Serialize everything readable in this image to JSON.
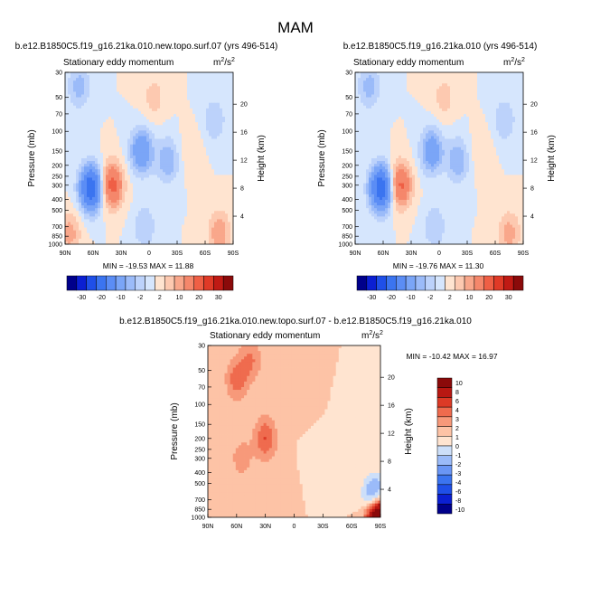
{
  "page_title": "MAM",
  "colors": {
    "full_scale": [
      "#00008b",
      "#0b1fd2",
      "#1f4fe8",
      "#3b74f0",
      "#5b8df5",
      "#7aa5f7",
      "#9bbbf9",
      "#bcd2fb",
      "#d6e6fd",
      "#ffe4d0",
      "#fdc9b0",
      "#f9a78b",
      "#f5876b",
      "#ef5f45",
      "#e03a27",
      "#c01a14",
      "#8b0a0a"
    ],
    "diff_scale": [
      "#00008b",
      "#0b1fd2",
      "#1f4fe8",
      "#3b74f0",
      "#6a96f5",
      "#9bbbf9",
      "#cddff9",
      "#ffe4d0",
      "#fdc3a6",
      "#f7997a",
      "#ef6b4e",
      "#dc3a26",
      "#b81812",
      "#8b0a0a"
    ]
  },
  "chart_data": [
    {
      "type": "heatmap",
      "title": "b.e12.B1850C5.f19_g16.21ka.010.new.topo.surf.07 (yrs 496-514)",
      "subtitle": "Stationary eddy momentum",
      "units_base": "m",
      "units_exp_top": "2",
      "units_exp_bottom": "2",
      "ylabel": "Pressure (mb)",
      "y2label": "Height (km)",
      "x_ticks": [
        "90N",
        "60N",
        "30N",
        "0",
        "30S",
        "60S",
        "90S"
      ],
      "y_ticks": [
        "30",
        "50",
        "70",
        "100",
        "150",
        "200",
        "250",
        "300",
        "400",
        "500",
        "700",
        "850",
        "1000"
      ],
      "y2_ticks": [
        "20",
        "16",
        "12",
        "8",
        "4"
      ],
      "stats": "MIN = -19.53   MAX =  11.88",
      "levels": [
        "-30",
        "-20",
        "-10",
        "-2",
        "2",
        "10",
        "20",
        "30"
      ],
      "features": [
        {
          "lat": 62,
          "p": 320,
          "value": -19.53
        },
        {
          "lat": 40,
          "p": 300,
          "value": 11.88
        },
        {
          "lat": 8,
          "p": 150,
          "value": -10
        },
        {
          "lat": -20,
          "p": 180,
          "value": -6
        },
        {
          "lat": 75,
          "p": 40,
          "value": -5
        },
        {
          "lat": 5,
          "p": 700,
          "value": -4
        },
        {
          "lat": -5,
          "p": 50,
          "value": 3
        },
        {
          "lat": 85,
          "p": 800,
          "value": 5
        },
        {
          "lat": -75,
          "p": 800,
          "value": 6
        },
        {
          "lat": -45,
          "p": 150,
          "value": 2
        },
        {
          "lat": -70,
          "p": 80,
          "value": -4
        }
      ]
    },
    {
      "type": "heatmap",
      "title": "b.e12.B1850C5.f19_g16.21ka.010 (yrs 496-514)",
      "subtitle": "Stationary eddy momentum",
      "units_base": "m",
      "units_exp_top": "2",
      "units_exp_bottom": "2",
      "ylabel": "Pressure (mb)",
      "y2label": "Height (km)",
      "x_ticks": [
        "90N",
        "60N",
        "30N",
        "0",
        "30S",
        "60S",
        "90S"
      ],
      "y_ticks": [
        "30",
        "50",
        "70",
        "100",
        "150",
        "200",
        "250",
        "300",
        "400",
        "500",
        "700",
        "850",
        "1000"
      ],
      "y2_ticks": [
        "20",
        "16",
        "12",
        "8",
        "4"
      ],
      "stats": "MIN = -19.76   MAX =  11.30",
      "levels": [
        "-30",
        "-20",
        "-10",
        "-2",
        "2",
        "10",
        "20",
        "30"
      ],
      "features": [
        {
          "lat": 62,
          "p": 320,
          "value": -19.76
        },
        {
          "lat": 42,
          "p": 300,
          "value": 11.3
        },
        {
          "lat": 8,
          "p": 150,
          "value": -9
        },
        {
          "lat": -20,
          "p": 180,
          "value": -6
        },
        {
          "lat": 75,
          "p": 40,
          "value": -5
        },
        {
          "lat": 5,
          "p": 700,
          "value": -4
        },
        {
          "lat": -5,
          "p": 50,
          "value": 3
        },
        {
          "lat": -75,
          "p": 800,
          "value": 5
        },
        {
          "lat": -45,
          "p": 150,
          "value": 2
        },
        {
          "lat": -70,
          "p": 80,
          "value": -4
        }
      ]
    },
    {
      "type": "heatmap",
      "title": "b.e12.B1850C5.f19_g16.21ka.010.new.topo.surf.07 - b.e12.B1850C5.f19_g16.21ka.010",
      "subtitle": "Stationary eddy momentum",
      "units_base": "m",
      "units_exp_top": "2",
      "units_exp_bottom": "2",
      "ylabel": "Pressure (mb)",
      "y2label": "Height (km)",
      "x_ticks": [
        "90N",
        "60N",
        "30N",
        "0",
        "30S",
        "60S",
        "90S"
      ],
      "y_ticks": [
        "30",
        "50",
        "70",
        "100",
        "150",
        "200",
        "250",
        "300",
        "400",
        "500",
        "700",
        "850",
        "1000"
      ],
      "y2_ticks": [
        "20",
        "16",
        "12",
        "8",
        "4"
      ],
      "stats": "MIN = -10.42   MAX =  16.97",
      "levels": [
        "10",
        "8",
        "6",
        "4",
        "3",
        "2",
        "1",
        "0",
        "-1",
        "-2",
        "-3",
        "-4",
        "-6",
        "-8",
        "-10"
      ],
      "features": [
        {
          "lat": 60,
          "p": 60,
          "value": 2.5
        },
        {
          "lat": 45,
          "p": 40,
          "value": 2
        },
        {
          "lat": 30,
          "p": 200,
          "value": 3
        },
        {
          "lat": 55,
          "p": 300,
          "value": 1.5
        },
        {
          "lat": -30,
          "p": 300,
          "value": -0.6
        },
        {
          "lat": -60,
          "p": 150,
          "value": -0.8
        },
        {
          "lat": -85,
          "p": 750,
          "value": -10.42
        },
        {
          "lat": -87,
          "p": 950,
          "value": 16.97
        },
        {
          "lat": 20,
          "p": 600,
          "value": 0.7
        },
        {
          "lat": -10,
          "p": 70,
          "value": 1
        },
        {
          "lat": 80,
          "p": 800,
          "value": 1
        }
      ]
    }
  ]
}
